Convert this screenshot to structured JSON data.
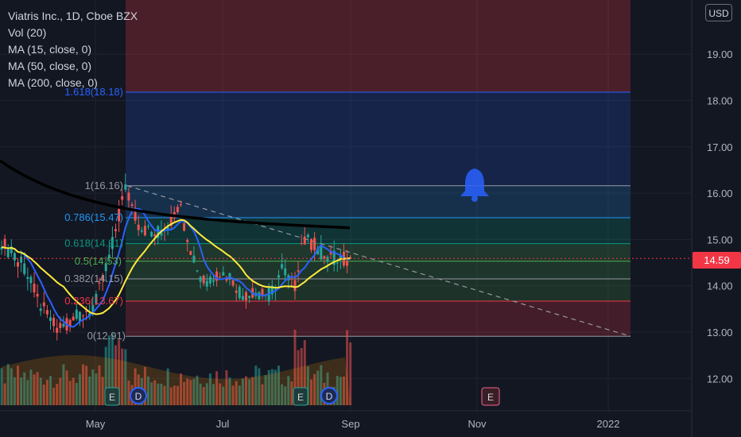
{
  "header": {
    "symbol_line": "Viatris Inc., 1D, Cboe BZX",
    "indicators": [
      "Vol (20)",
      "MA (15, close, 0)",
      "MA (50, close, 0)",
      "MA (200, close, 0)"
    ]
  },
  "currency_button": "USD",
  "last_price": "14.59",
  "chart_data": {
    "type": "candlestick",
    "y_axis": {
      "ticks": [
        "12.00",
        "13.00",
        "14.00",
        "15.00",
        "16.00",
        "17.00",
        "18.00",
        "19.00"
      ],
      "range": [
        11.3,
        20.1
      ]
    },
    "x_axis": {
      "ticks": [
        "May",
        "Jul",
        "Sep",
        "Nov",
        "2022"
      ]
    },
    "last_price": 14.59,
    "fibonacci": {
      "labels": [
        {
          "text": "0(12.91)",
          "level": 12.91,
          "color": "#9598a1"
        },
        {
          "text": "0.236(13.67)",
          "level": 13.67,
          "color": "#f23645"
        },
        {
          "text": "0.382(14.15)",
          "level": 14.15,
          "color": "#9598a1"
        },
        {
          "text": "0.5(14.53)",
          "level": 14.53,
          "color": "#4caf50"
        },
        {
          "text": "0.618(14.91)",
          "level": 14.91,
          "color": "#089981"
        },
        {
          "text": "0.786(15.47)",
          "level": 15.47,
          "color": "#2196f3"
        },
        {
          "text": "1(16.16)",
          "level": 16.16,
          "color": "#9598a1"
        },
        {
          "text": "1.618(18.18)",
          "level": 18.18,
          "color": "#2962ff"
        }
      ]
    },
    "earnings_events": [
      "E",
      "E",
      "E"
    ],
    "dividend_events": [
      "D",
      "D"
    ],
    "colors": {
      "up": "#26a69a",
      "down": "#ef5350",
      "ma15": "#2962ff",
      "ma50": "#ffeb3b",
      "ma200": "#000000"
    }
  }
}
